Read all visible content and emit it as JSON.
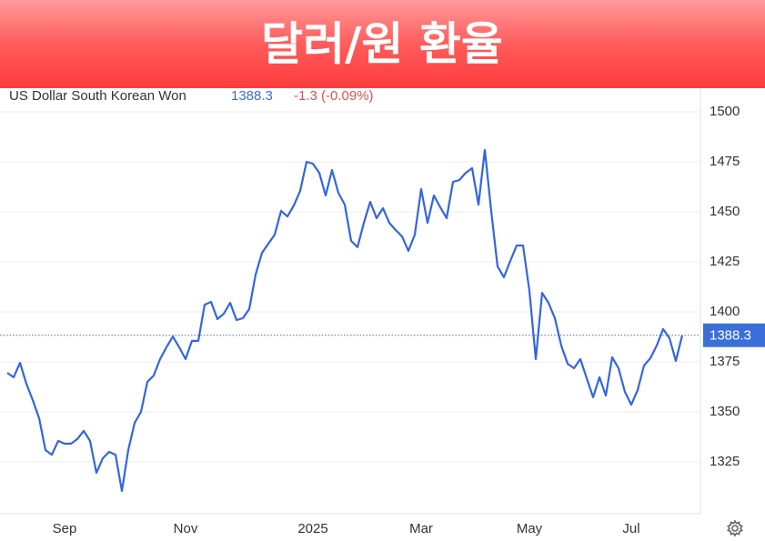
{
  "chart_data": {
    "type": "line",
    "title": "달러/원 환율",
    "series": [
      {
        "name": "US Dollar South Korean Won",
        "color": "#3366dd",
        "values": [
          1369.5,
          1367.3,
          1374.5,
          1364.1,
          1355.9,
          1346.8,
          1330.9,
          1328.6,
          1335.5,
          1334.1,
          1334.1,
          1336.4,
          1340.5,
          1335.5,
          1319.5,
          1326.8,
          1330.0,
          1328.6,
          1310.5,
          1330.9,
          1344.5,
          1350.0,
          1365.0,
          1368.2,
          1376.4,
          1382.3,
          1387.7,
          1382.3,
          1376.4,
          1385.5,
          1385.5,
          1403.6,
          1405.0,
          1396.4,
          1399.1,
          1404.5,
          1395.9,
          1396.8,
          1401.4,
          1418.6,
          1429.5,
          1434.1,
          1438.6,
          1450.5,
          1447.7,
          1453.2,
          1460.5,
          1475.0,
          1474.1,
          1469.5,
          1458.2,
          1470.9,
          1459.5,
          1453.6,
          1435.5,
          1432.3,
          1444.5,
          1455.0,
          1446.8,
          1451.8,
          1444.5,
          1440.9,
          1437.7,
          1430.5,
          1438.6,
          1461.4,
          1444.5,
          1458.2,
          1452.3,
          1446.8,
          1465.0,
          1465.9,
          1469.5,
          1471.8,
          1453.6,
          1480.9,
          1450.5,
          1422.7,
          1417.3,
          1425.5,
          1433.2,
          1433.2,
          1410.5,
          1376.4,
          1409.5,
          1404.5,
          1396.8,
          1383.2,
          1374.1,
          1371.8,
          1376.4,
          1366.8,
          1357.3,
          1367.3,
          1358.2,
          1377.3,
          1371.8,
          1360.0,
          1353.6,
          1360.9,
          1373.2,
          1376.8,
          1383.2,
          1391.4,
          1386.8,
          1375.5,
          1388.3
        ]
      }
    ],
    "categories": [
      null,
      null,
      null,
      null,
      null,
      null,
      null,
      null,
      null,
      "Sep",
      null,
      null,
      null,
      null,
      null,
      null,
      null,
      null,
      null,
      null,
      null,
      null,
      null,
      null,
      null,
      null,
      null,
      null,
      "Nov",
      null,
      null,
      null,
      null,
      null,
      null,
      null,
      null,
      null,
      null,
      null,
      null,
      null,
      null,
      null,
      null,
      null,
      null,
      null,
      "2025",
      null,
      null,
      null,
      null,
      null,
      null,
      null,
      null,
      null,
      null,
      null,
      null,
      null,
      null,
      null,
      null,
      "Mar",
      null,
      null,
      null,
      null,
      null,
      null,
      null,
      null,
      null,
      null,
      null,
      null,
      null,
      null,
      null,
      null,
      "May",
      null,
      null,
      null,
      null,
      null,
      null,
      null,
      null,
      null,
      null,
      null,
      null,
      null,
      null,
      null,
      "Jul",
      null,
      null,
      null,
      null,
      null,
      null,
      null,
      null
    ],
    "last_value": 1388.3,
    "change": "-1.3 (-0.09%)",
    "ylim": [
      1300,
      1510
    ],
    "yticks": [
      1325,
      1350,
      1375,
      1400,
      1425,
      1450,
      1475,
      1500
    ],
    "grid": true
  }
}
